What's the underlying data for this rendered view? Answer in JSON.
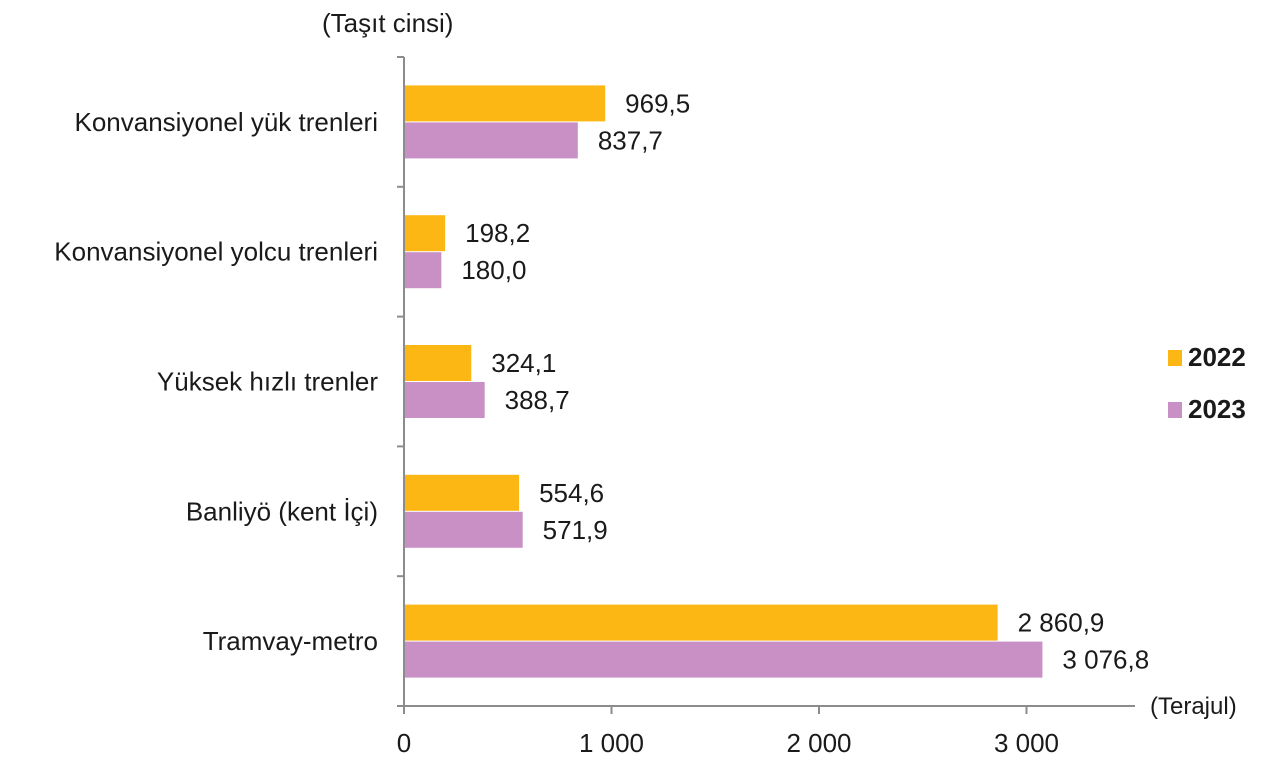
{
  "chart_data": {
    "type": "bar",
    "orientation": "horizontal",
    "y_axis_title": "(Taşıt cinsi)",
    "x_axis_title": "(Terajul)",
    "categories": [
      "Konvansiyonel yük trenleri",
      "Konvansiyonel yolcu trenleri",
      "Yüksek hızlı trenler",
      "Banliyö (kent İçi)",
      "Tramvay-metro"
    ],
    "series": [
      {
        "name": "2022",
        "color": "#FDB715",
        "values": [
          969.5,
          198.2,
          324.1,
          554.6,
          2860.9
        ],
        "labels": [
          "969,5",
          "198,2",
          "324,1",
          "554,6",
          "2 860,9"
        ]
      },
      {
        "name": "2023",
        "color": "#C890C4",
        "values": [
          837.7,
          180.0,
          388.7,
          571.9,
          3076.8
        ],
        "labels": [
          "837,7",
          "180,0",
          "388,7",
          "571,9",
          "3 076,8"
        ]
      }
    ],
    "xlim": [
      0,
      3500
    ],
    "x_ticks": [
      0,
      1000,
      2000,
      3000
    ],
    "x_tick_labels": [
      "0",
      "1 000",
      "2 000",
      "3 000"
    ],
    "legend_position": "right",
    "grid": false
  }
}
